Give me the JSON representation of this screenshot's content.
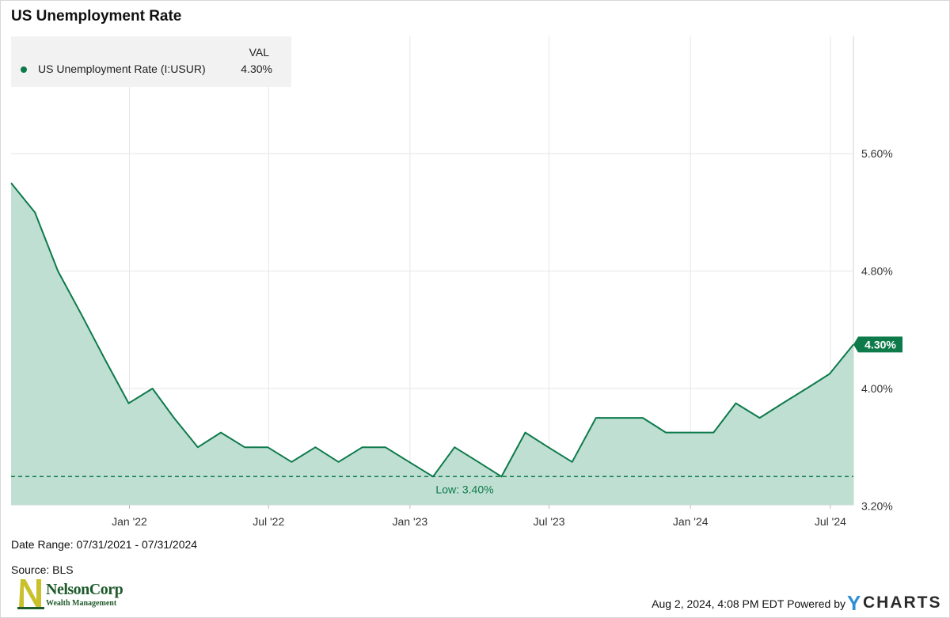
{
  "header": {
    "title": "US Unemployment Rate"
  },
  "legend": {
    "column_header": "VAL",
    "series_name": "US Unemployment Rate (I:USUR)",
    "series_value": "4.30%",
    "dot_color": "#0d7a4a"
  },
  "footer": {
    "date_range": "Date Range: 07/31/2021 - 07/31/2024",
    "source": "Source: BLS",
    "timestamp": "Aug 2, 2024, 4:08 PM EDT Powered by",
    "brand_y": "Y",
    "brand_rest": "CHARTS",
    "logo_name": "NelsonCorp",
    "logo_sub": "Wealth Management"
  },
  "colors": {
    "line": "#0d7a4a",
    "fill": "#bfdfd2",
    "grid": "#e6e6e6",
    "label_bg": "#0d7a4a"
  },
  "chart_data": {
    "type": "area",
    "title": "US Unemployment Rate",
    "xlabel": "",
    "ylabel": "",
    "ylim": [
      3.2,
      5.6
    ],
    "x_range": [
      "2021-07-31",
      "2024-07-31"
    ],
    "y_ticks": [
      {
        "value": 5.6,
        "label": "5.60%"
      },
      {
        "value": 4.8,
        "label": "4.80%"
      },
      {
        "value": 4.0,
        "label": "4.00%"
      },
      {
        "value": 3.2,
        "label": "3.20%"
      }
    ],
    "x_ticks": [
      {
        "date": "2022-01-01",
        "label": "Jan '22"
      },
      {
        "date": "2022-07-01",
        "label": "Jul '22"
      },
      {
        "date": "2023-01-01",
        "label": "Jan '23"
      },
      {
        "date": "2023-07-01",
        "label": "Jul '23"
      },
      {
        "date": "2024-01-01",
        "label": "Jan '24"
      },
      {
        "date": "2024-07-01",
        "label": "Jul '24"
      }
    ],
    "grid": true,
    "legend_position": "top-left",
    "series": [
      {
        "name": "US Unemployment Rate (I:USUR)",
        "x": [
          "2021-07-31",
          "2021-08-31",
          "2021-09-30",
          "2021-10-31",
          "2021-11-30",
          "2021-12-31",
          "2022-01-31",
          "2022-02-28",
          "2022-03-31",
          "2022-04-30",
          "2022-05-31",
          "2022-06-30",
          "2022-07-31",
          "2022-08-31",
          "2022-09-30",
          "2022-10-31",
          "2022-11-30",
          "2022-12-31",
          "2023-01-31",
          "2023-02-28",
          "2023-03-31",
          "2023-04-30",
          "2023-05-31",
          "2023-06-30",
          "2023-07-31",
          "2023-08-31",
          "2023-09-30",
          "2023-10-31",
          "2023-11-30",
          "2023-12-31",
          "2024-01-31",
          "2024-02-29",
          "2024-03-31",
          "2024-04-30",
          "2024-05-31",
          "2024-06-30",
          "2024-07-31"
        ],
        "values": [
          5.4,
          5.2,
          4.8,
          4.5,
          4.2,
          3.9,
          4.0,
          3.8,
          3.6,
          3.7,
          3.6,
          3.6,
          3.5,
          3.6,
          3.5,
          3.6,
          3.6,
          3.5,
          3.4,
          3.6,
          3.5,
          3.4,
          3.7,
          3.6,
          3.5,
          3.8,
          3.8,
          3.8,
          3.7,
          3.7,
          3.7,
          3.9,
          3.8,
          3.9,
          4.0,
          4.1,
          4.3
        ]
      }
    ],
    "annotations": [
      {
        "type": "low-line",
        "value": 3.4,
        "label": "Low: 3.40%"
      },
      {
        "type": "last-value",
        "value": 4.3,
        "label": "4.30%"
      }
    ]
  }
}
